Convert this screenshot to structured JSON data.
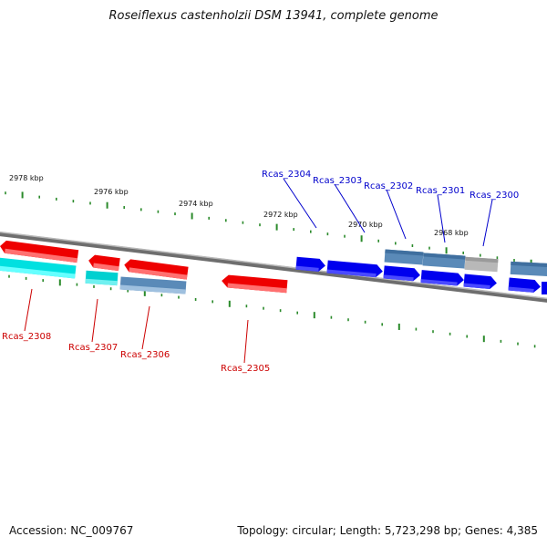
{
  "title": "Roseiflexus castenholzii DSM 13941, complete genome",
  "footer": {
    "accession": "Accession: NC_009767",
    "summary": "Topology: circular; Length: 5,723,298 bp; Genes: 4,385"
  },
  "colors": {
    "background": "#ffffff",
    "backbone": "#888888",
    "tick": "#2a8a2a",
    "forward_gene": "#0000ee",
    "reverse_gene": "#ee0000",
    "rna_gene": "#00dddd",
    "pseudo_gene": "#5a8ab8",
    "label_top": "#0000cc",
    "label_bottom": "#cc0000"
  },
  "scale_labels": [
    "2978 kbp",
    "2976 kbp",
    "2974 kbp",
    "2972 kbp",
    "2970 kbp",
    "2968 kbp"
  ],
  "gene_labels": [
    {
      "id": "Rcas_2304",
      "strand": "top"
    },
    {
      "id": "Rcas_2303",
      "strand": "top"
    },
    {
      "id": "Rcas_2302",
      "strand": "top"
    },
    {
      "id": "Rcas_2301",
      "strand": "top"
    },
    {
      "id": "Rcas_2300",
      "strand": "top"
    },
    {
      "id": "Rcas_2308",
      "strand": "bottom"
    },
    {
      "id": "Rcas_2307",
      "strand": "bottom"
    },
    {
      "id": "Rcas_2306",
      "strand": "bottom"
    },
    {
      "id": "Rcas_2305",
      "strand": "bottom"
    }
  ]
}
